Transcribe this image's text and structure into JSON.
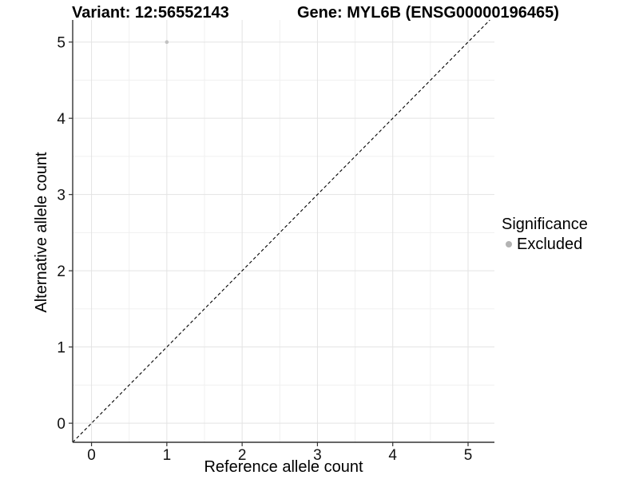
{
  "chart_data": {
    "type": "scatter",
    "title_left": "Variant: 12:56552143",
    "title_right": "Gene: MYL6B (ENSG00000196465)",
    "xlabel": "Reference allele count",
    "ylabel": "Alternative allele count",
    "xlim": [
      -0.25,
      5.35
    ],
    "ylim": [
      -0.25,
      5.29
    ],
    "x_ticks": [
      0,
      1,
      2,
      3,
      4,
      5
    ],
    "y_ticks": [
      0,
      1,
      2,
      3,
      4,
      5
    ],
    "x_minor_ticks": [
      0.5,
      1.5,
      2.5,
      3.5,
      4.5
    ],
    "y_minor_ticks": [
      0.5,
      1.5,
      2.5,
      3.5,
      4.5
    ],
    "grid": true,
    "identity_line": {
      "slope": 1,
      "intercept": 0,
      "style": "dashed"
    },
    "points": [
      {
        "x": 1,
        "y": 5,
        "series": "Excluded"
      }
    ],
    "legend": {
      "position": "right",
      "title": "Significance",
      "items": [
        {
          "label": "Excluded",
          "color": "#b3b3b3"
        }
      ]
    }
  },
  "colors": {
    "background": "#ffffff",
    "point": "#c2c2c2",
    "grid_major": "#e3e3e3",
    "grid_minor": "#f0f0f0",
    "axis_line": "#333333",
    "tick_mark": "#333333",
    "identity_line": "#000000",
    "text": "#000000"
  }
}
